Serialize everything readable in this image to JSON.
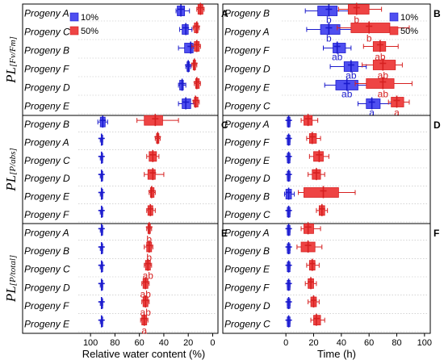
{
  "chart_data": {
    "type": "box",
    "colors": {
      "s10": "#4f4ff0",
      "s50": "#ee4444",
      "s10_dark": "#1a1acc",
      "s50_dark": "#d62020"
    },
    "legend": {
      "s10": "10%",
      "s50": "50%",
      "placement": "top-left"
    },
    "xlabel_left": "Relative water content (%)",
    "xlabel_right": "Time (h)",
    "xticks_left": [
      "100",
      "80",
      "60",
      "40",
      "20",
      "0"
    ],
    "xticks_right": [
      "0",
      "20",
      "40",
      "60",
      "80",
      "100"
    ],
    "xlim_left": [
      110,
      -3
    ],
    "xlim_right": [
      -3,
      103
    ],
    "row_labels": [
      {
        "main": "PL",
        "sub": "[Fv/Fm]"
      },
      {
        "main": "PL",
        "sub": "[P/abs]"
      },
      {
        "main": "PL",
        "sub": "[P/total]"
      }
    ],
    "panels": [
      {
        "letter": "A",
        "col": 0,
        "row": 0,
        "items": [
          {
            "label": "Progeny A",
            "s10": [
              19,
              23,
              26,
              29,
              30
            ],
            "s50": [
              7,
              8,
              10,
              12,
              13
            ],
            "a10": "",
            "a50": ""
          },
          {
            "label": "Progeny C",
            "s10": [
              17,
              20,
              22,
              25,
              27
            ],
            "s50": [
              11,
              12,
              13,
              15,
              16
            ],
            "a10": "",
            "a50": ""
          },
          {
            "label": "Progeny B",
            "s10": [
              12,
              16,
              18,
              23,
              28
            ],
            "s50": [
              10,
              11,
              13,
              15,
              17
            ],
            "a10": "",
            "a50": ""
          },
          {
            "label": "Progeny F",
            "s10": [
              18,
              19,
              20,
              21,
              22
            ],
            "s50": [
              13,
              14,
              15,
              16,
              17
            ],
            "a10": "",
            "a50": ""
          },
          {
            "label": "Progeny D",
            "s10": [
              22,
              24,
              25,
              27,
              28
            ],
            "s50": [
              10,
              11,
              13,
              14,
              15
            ],
            "a10": "",
            "a50": ""
          },
          {
            "label": "Progeny E",
            "s10": [
              15,
              18,
              22,
              25,
              28
            ],
            "s50": [
              11,
              12,
              14,
              15,
              16
            ],
            "a10": "",
            "a50": ""
          }
        ]
      },
      {
        "letter": "B",
        "col": 1,
        "row": 0,
        "items": [
          {
            "label": "Progeny B",
            "s10": [
              14,
              23,
              31,
              37,
              45
            ],
            "s50": [
              38,
              45,
              51,
              60,
              69
            ],
            "a10": "b",
            "a50": "b"
          },
          {
            "label": "Progeny A",
            "s10": [
              15,
              25,
              31,
              39,
              48
            ],
            "s50": [
              37,
              47,
              60,
              75,
              89
            ],
            "a10": "b",
            "a50": "b"
          },
          {
            "label": "Progeny F",
            "s10": [
              27,
              34,
              37,
              43,
              47
            ],
            "s50": [
              56,
              63,
              68,
              72,
              81
            ],
            "a10": "ab",
            "a50": "ab"
          },
          {
            "label": "Progeny D",
            "s10": [
              32,
              42,
              47,
              52,
              58
            ],
            "s50": [
              55,
              63,
              70,
              79,
              84
            ],
            "a10": "ab",
            "a50": "ab"
          },
          {
            "label": "Progeny E",
            "s10": [
              28,
              36,
              44,
              52,
              60
            ],
            "s50": [
              50,
              58,
              70,
              78,
              91
            ],
            "a10": "ab",
            "a50": "ab"
          },
          {
            "label": "Progeny C",
            "s10": [
              52,
              58,
              62,
              68,
              77
            ],
            "s50": [
              74,
              76,
              80,
              85,
              89
            ],
            "a10": "a",
            "a50": "a"
          }
        ]
      },
      {
        "letter": "C",
        "col": 0,
        "row": 1,
        "items": [
          {
            "label": "Progeny B",
            "s10": [
              86,
              88,
              90,
              92,
              94
            ],
            "s50": [
              28,
              41,
              47,
              56,
              62
            ],
            "a10": "",
            "a50": ""
          },
          {
            "label": "Progeny A",
            "s10": [
              90,
              90,
              91,
              91,
              92
            ],
            "s50": [
              43,
              44,
              45,
              46,
              47
            ],
            "a10": "",
            "a50": ""
          },
          {
            "label": "Progeny C",
            "s10": [
              90,
              90,
              91,
              91,
              92
            ],
            "s50": [
              44,
              46,
              49,
              52,
              54
            ],
            "a10": "",
            "a50": ""
          },
          {
            "label": "Progeny D",
            "s10": [
              90,
              90,
              91,
              91,
              92
            ],
            "s50": [
              40,
              47,
              49,
              53,
              56
            ],
            "a10": "",
            "a50": ""
          },
          {
            "label": "Progeny E",
            "s10": [
              90,
              90,
              91,
              91,
              92
            ],
            "s50": [
              47,
              48,
              50,
              51,
              52
            ],
            "a10": "",
            "a50": ""
          },
          {
            "label": "Progeny F",
            "s10": [
              90,
              90,
              91,
              91,
              92
            ],
            "s50": [
              47,
              49,
              51,
              53,
              54
            ],
            "a10": "",
            "a50": ""
          }
        ]
      },
      {
        "letter": "D",
        "col": 1,
        "row": 1,
        "items": [
          {
            "label": "Progeny A",
            "s10": [
              1,
              1,
              2,
              3,
              3
            ],
            "s50": [
              11,
              13,
              16,
              19,
              23
            ],
            "a10": "",
            "a50": ""
          },
          {
            "label": "Progeny F",
            "s10": [
              1,
              1,
              2,
              3,
              3
            ],
            "s50": [
              15,
              17,
              19,
              22,
              25
            ],
            "a10": "",
            "a50": ""
          },
          {
            "label": "Progeny E",
            "s10": [
              1,
              1,
              2,
              3,
              3
            ],
            "s50": [
              17,
              20,
              24,
              27,
              31
            ],
            "a10": "",
            "a50": ""
          },
          {
            "label": "Progeny D",
            "s10": [
              1,
              1,
              2,
              3,
              3
            ],
            "s50": [
              16,
              19,
              22,
              25,
              28
            ],
            "a10": "",
            "a50": ""
          },
          {
            "label": "Progeny B",
            "s10": [
              -1,
              0,
              2,
              4,
              6
            ],
            "s50": [
              9,
              13,
              27,
              38,
              50
            ],
            "a10": "",
            "a50": ""
          },
          {
            "label": "Progeny C",
            "s10": [
              1,
              1,
              2,
              3,
              3
            ],
            "s50": [
              22,
              24,
              26,
              28,
              30
            ],
            "a10": "",
            "a50": ""
          }
        ]
      },
      {
        "letter": "E",
        "col": 0,
        "row": 2,
        "items": [
          {
            "label": "Progeny A",
            "s10": [
              90,
              90,
              91,
              91,
              92
            ],
            "s50": [
              50,
              51,
              52,
              53,
              54
            ],
            "a10": "",
            "a50": "b"
          },
          {
            "label": "Progeny B",
            "s10": [
              90,
              90,
              91,
              91,
              92
            ],
            "s50": [
              49,
              50,
              52,
              54,
              56
            ],
            "a10": "",
            "a50": "b"
          },
          {
            "label": "Progeny C",
            "s10": [
              90,
              90,
              91,
              91,
              92
            ],
            "s50": [
              50,
              51,
              53,
              55,
              56
            ],
            "a10": "",
            "a50": "ab"
          },
          {
            "label": "Progeny D",
            "s10": [
              90,
              90,
              91,
              91,
              92
            ],
            "s50": [
              52,
              53,
              55,
              57,
              58
            ],
            "a10": "",
            "a50": "ab"
          },
          {
            "label": "Progeny F",
            "s10": [
              90,
              90,
              91,
              91,
              92
            ],
            "s50": [
              52,
              53,
              55,
              57,
              58
            ],
            "a10": "",
            "a50": "ab"
          },
          {
            "label": "Progeny E",
            "s10": [
              90,
              90,
              91,
              91,
              92
            ],
            "s50": [
              53,
              54,
              56,
              58,
              59
            ],
            "a10": "",
            "a50": "a"
          }
        ]
      },
      {
        "letter": "F",
        "col": 1,
        "row": 2,
        "items": [
          {
            "label": "Progeny A",
            "s10": [
              1,
              1,
              2,
              3,
              3
            ],
            "s50": [
              11,
              13,
              16,
              20,
              25
            ],
            "a10": "",
            "a50": ""
          },
          {
            "label": "Progeny B",
            "s10": [
              1,
              1,
              2,
              3,
              3
            ],
            "s50": [
              8,
              11,
              16,
              21,
              26
            ],
            "a10": "",
            "a50": ""
          },
          {
            "label": "Progeny E",
            "s10": [
              1,
              1,
              2,
              3,
              3
            ],
            "s50": [
              15,
              17,
              19,
              21,
              24
            ],
            "a10": "",
            "a50": ""
          },
          {
            "label": "Progeny F",
            "s10": [
              1,
              1,
              2,
              3,
              3
            ],
            "s50": [
              14,
              16,
              18,
              20,
              22
            ],
            "a10": "",
            "a50": ""
          },
          {
            "label": "Progeny D",
            "s10": [
              1,
              1,
              2,
              3,
              3
            ],
            "s50": [
              16,
              18,
              20,
              22,
              24
            ],
            "a10": "",
            "a50": ""
          },
          {
            "label": "Progeny C",
            "s10": [
              1,
              1,
              2,
              3,
              3
            ],
            "s50": [
              18,
              20,
              22,
              25,
              28
            ],
            "a10": "",
            "a50": ""
          }
        ]
      }
    ]
  }
}
